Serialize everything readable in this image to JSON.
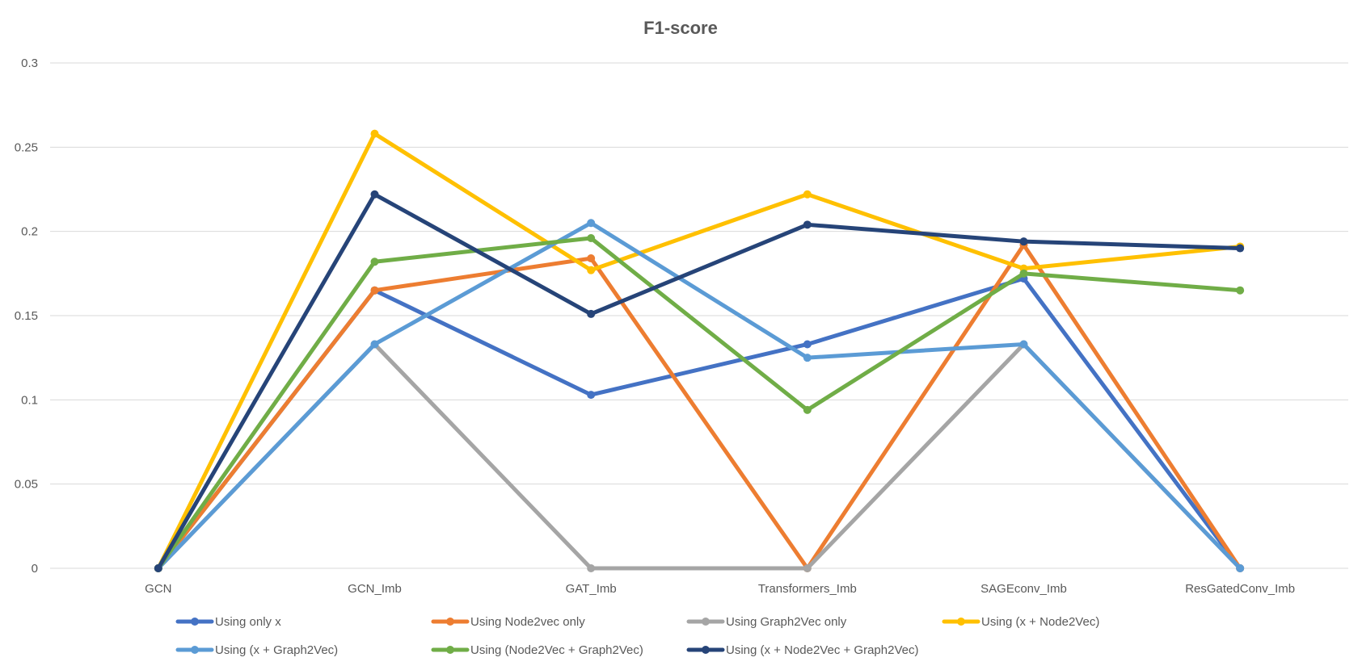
{
  "chart_data": {
    "type": "line",
    "title": "F1-score",
    "xlabel": "",
    "ylabel": "",
    "ylim": [
      0,
      0.3
    ],
    "yticks": [
      "0",
      "0.05",
      "0.1",
      "0.15",
      "0.2",
      "0.25",
      "0.3"
    ],
    "grid": true,
    "legend_position": "bottom",
    "categories": [
      "GCN",
      "GCN_Imb",
      "GAT_Imb",
      "Transformers_Imb",
      "SAGEconv_Imb",
      "ResGatedConv_Imb"
    ],
    "series": [
      {
        "name": "Using only x",
        "color": "#4472c4",
        "values": [
          0,
          0.165,
          0.103,
          0.133,
          0.172,
          0
        ]
      },
      {
        "name": "Using Node2vec only",
        "color": "#ed7d31",
        "values": [
          0,
          0.165,
          0.184,
          0,
          0.192,
          0
        ]
      },
      {
        "name": "Using Graph2Vec only",
        "color": "#a5a5a5",
        "values": [
          0,
          0.133,
          0,
          0,
          0.133,
          0
        ]
      },
      {
        "name": "Using (x + Node2Vec)",
        "color": "#ffc000",
        "values": [
          0,
          0.258,
          0.177,
          0.222,
          0.178,
          0.191
        ]
      },
      {
        "name": "Using (x + Graph2Vec)",
        "color": "#5b9bd5",
        "values": [
          0,
          0.133,
          0.205,
          0.125,
          0.133,
          0
        ]
      },
      {
        "name": "Using (Node2Vec + Graph2Vec)",
        "color": "#70ad47",
        "values": [
          0,
          0.182,
          0.196,
          0.094,
          0.175,
          0.165
        ]
      },
      {
        "name": "Using (x + Node2Vec + Graph2Vec)",
        "color": "#264478",
        "values": [
          0,
          0.222,
          0.151,
          0.204,
          0.194,
          0.19
        ]
      }
    ]
  }
}
